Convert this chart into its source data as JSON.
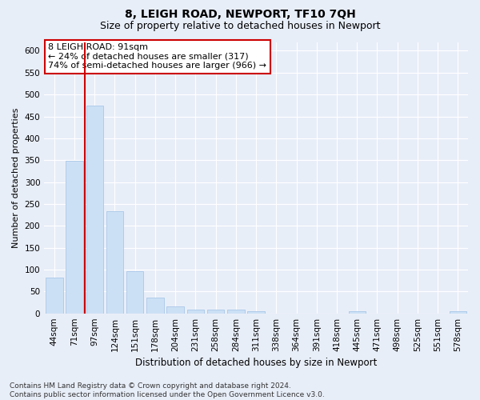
{
  "title": "8, LEIGH ROAD, NEWPORT, TF10 7QH",
  "subtitle": "Size of property relative to detached houses in Newport",
  "xlabel": "Distribution of detached houses by size in Newport",
  "ylabel": "Number of detached properties",
  "categories": [
    "44sqm",
    "71sqm",
    "97sqm",
    "124sqm",
    "151sqm",
    "178sqm",
    "204sqm",
    "231sqm",
    "258sqm",
    "284sqm",
    "311sqm",
    "338sqm",
    "364sqm",
    "391sqm",
    "418sqm",
    "445sqm",
    "471sqm",
    "498sqm",
    "525sqm",
    "551sqm",
    "578sqm"
  ],
  "values": [
    82,
    348,
    474,
    234,
    96,
    36,
    16,
    8,
    8,
    8,
    5,
    0,
    0,
    0,
    0,
    5,
    0,
    0,
    0,
    0,
    5
  ],
  "bar_color": "#cce0f5",
  "bar_edge_color": "#a8c8e8",
  "vline_x_index": 2,
  "vline_color": "#cc0000",
  "annotation_line1": "8 LEIGH ROAD: 91sqm",
  "annotation_line2": "← 24% of detached houses are smaller (317)",
  "annotation_line3": "74% of semi-detached houses are larger (966) →",
  "annotation_box_color": "#ffffff",
  "annotation_box_edge_color": "#cc0000",
  "ylim": [
    0,
    620
  ],
  "yticks": [
    0,
    50,
    100,
    150,
    200,
    250,
    300,
    350,
    400,
    450,
    500,
    550,
    600
  ],
  "bg_color": "#e8eef8",
  "plot_bg_color": "#e8eef8",
  "footer_text": "Contains HM Land Registry data © Crown copyright and database right 2024.\nContains public sector information licensed under the Open Government Licence v3.0.",
  "title_fontsize": 10,
  "subtitle_fontsize": 9,
  "xlabel_fontsize": 8.5,
  "ylabel_fontsize": 8,
  "tick_fontsize": 7.5,
  "annotation_fontsize": 8,
  "footer_fontsize": 6.5
}
